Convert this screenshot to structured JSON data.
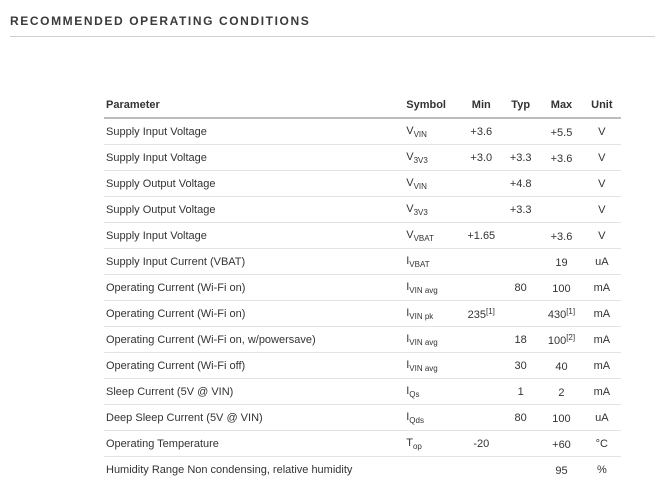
{
  "section": {
    "title": "RECOMMENDED OPERATING CONDITIONS"
  },
  "table": {
    "headers": {
      "parameter": "Parameter",
      "symbol": "Symbol",
      "min": "Min",
      "typ": "Typ",
      "max": "Max",
      "unit": "Unit"
    },
    "rows": [
      {
        "parameter": "Supply Input Voltage",
        "symbol": {
          "base": "V",
          "sub": "VIN"
        },
        "min": "+3.6",
        "typ": "",
        "max": "+5.5",
        "max_note": "",
        "unit": "V"
      },
      {
        "parameter": "Supply Input Voltage",
        "symbol": {
          "base": "V",
          "sub": "3V3"
        },
        "min": "+3.0",
        "typ": "+3.3",
        "max": "+3.6",
        "max_note": "",
        "unit": "V"
      },
      {
        "parameter": "Supply Output Voltage",
        "symbol": {
          "base": "V",
          "sub": "VIN"
        },
        "min": "",
        "typ": "+4.8",
        "max": "",
        "max_note": "",
        "unit": "V"
      },
      {
        "parameter": "Supply Output Voltage",
        "symbol": {
          "base": "V",
          "sub": "3V3"
        },
        "min": "",
        "typ": "+3.3",
        "max": "",
        "max_note": "",
        "unit": "V"
      },
      {
        "parameter": "Supply Input Voltage",
        "symbol": {
          "base": "V",
          "sub": "VBAT"
        },
        "min": "+1.65",
        "typ": "",
        "max": "+3.6",
        "max_note": "",
        "unit": "V"
      },
      {
        "parameter": "Supply Input Current (VBAT)",
        "symbol": {
          "base": "I",
          "sub": "VBAT"
        },
        "min": "",
        "typ": "",
        "max": "19",
        "max_note": "",
        "unit": "uA"
      },
      {
        "parameter": "Operating Current (Wi-Fi on)",
        "symbol": {
          "base": "I",
          "sub": "VIN avg"
        },
        "min": "",
        "typ": "80",
        "max": "100",
        "max_note": "",
        "unit": "mA"
      },
      {
        "parameter": "Operating Current (Wi-Fi on)",
        "symbol": {
          "base": "I",
          "sub": "VIN pk"
        },
        "min": "235",
        "min_note": "[1]",
        "typ": "",
        "max": "430",
        "max_note": "[1]",
        "unit": "mA"
      },
      {
        "parameter": "Operating Current (Wi-Fi on, w/powersave)",
        "symbol": {
          "base": "I",
          "sub": "VIN avg"
        },
        "min": "",
        "typ": "18",
        "max": "100",
        "max_note": "[2]",
        "unit": "mA"
      },
      {
        "parameter": "Operating Current (Wi-Fi off)",
        "symbol": {
          "base": "I",
          "sub": "VIN avg"
        },
        "min": "",
        "typ": "30",
        "max": "40",
        "max_note": "",
        "unit": "mA"
      },
      {
        "parameter": "Sleep Current (5V @ VIN)",
        "symbol": {
          "base": "I",
          "sub": "Qs"
        },
        "min": "",
        "typ": "1",
        "max": "2",
        "max_note": "",
        "unit": "mA"
      },
      {
        "parameter": "Deep Sleep Current (5V @ VIN)",
        "symbol": {
          "base": "I",
          "sub": "Qds"
        },
        "min": "",
        "typ": "80",
        "max": "100",
        "max_note": "",
        "unit": "uA"
      },
      {
        "parameter": "Operating Temperature",
        "symbol": {
          "base": "T",
          "sub": "op"
        },
        "min": "-20",
        "typ": "",
        "max": "+60",
        "max_note": "",
        "unit": "°C"
      },
      {
        "parameter": "Humidity Range Non condensing, relative humidity",
        "symbol": {
          "base": "",
          "sub": ""
        },
        "min": "",
        "typ": "",
        "max": "95",
        "max_note": "",
        "unit": "%"
      }
    ]
  }
}
